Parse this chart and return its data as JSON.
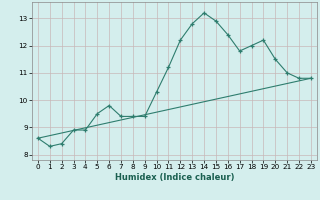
{
  "xlabel": "Humidex (Indice chaleur)",
  "ylabel": "",
  "bg_color": "#d4eeed",
  "grid_color": "#c8b8b8",
  "line_color": "#2e7d6e",
  "xlim": [
    -0.5,
    23.5
  ],
  "ylim": [
    7.8,
    13.6
  ],
  "yticks": [
    8,
    9,
    10,
    11,
    12,
    13
  ],
  "xticks": [
    0,
    1,
    2,
    3,
    4,
    5,
    6,
    7,
    8,
    9,
    10,
    11,
    12,
    13,
    14,
    15,
    16,
    17,
    18,
    19,
    20,
    21,
    22,
    23
  ],
  "series1_x": [
    0,
    1,
    2,
    3,
    4,
    5,
    6,
    7,
    8,
    9,
    10,
    11,
    12,
    13,
    14,
    15,
    16,
    17,
    18,
    19,
    20,
    21,
    22,
    23
  ],
  "series1_y": [
    8.6,
    8.3,
    8.4,
    8.9,
    8.9,
    9.5,
    9.8,
    9.4,
    9.4,
    9.4,
    10.3,
    11.2,
    12.2,
    12.8,
    13.2,
    12.9,
    12.4,
    11.8,
    12.0,
    12.2,
    11.5,
    11.0,
    10.8,
    10.8
  ],
  "series2_x": [
    0,
    23
  ],
  "series2_y": [
    8.6,
    10.8
  ],
  "xlabel_fontsize": 6.0,
  "tick_fontsize": 5.2
}
